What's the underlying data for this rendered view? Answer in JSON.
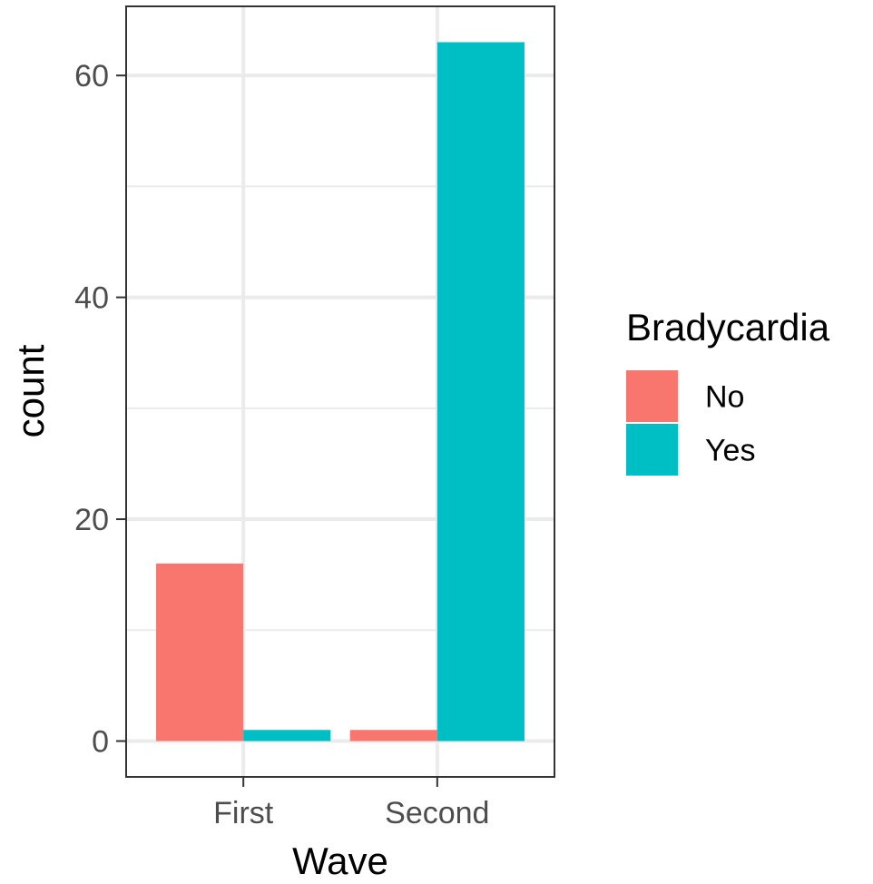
{
  "chart_data": {
    "type": "bar",
    "categories": [
      "First",
      "Second"
    ],
    "series": [
      {
        "name": "No",
        "color": "#F8766D",
        "values": [
          16,
          1
        ]
      },
      {
        "name": "Yes",
        "color": "#00BFC4",
        "values": [
          1,
          63
        ]
      }
    ],
    "xlabel": "Wave",
    "ylabel": "count",
    "ylim": [
      -3.15,
      66.15
    ],
    "yticks": [
      0,
      20,
      40,
      60
    ],
    "ytick_labels": [
      "0",
      "20",
      "40",
      "60"
    ],
    "grid": true,
    "legend": {
      "title": "Bradycardia",
      "position": "right"
    }
  }
}
